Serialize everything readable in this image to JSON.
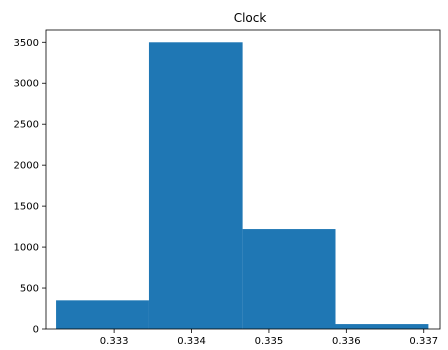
{
  "chart_data": {
    "type": "bar",
    "title": "Clock",
    "xlabel": "",
    "ylabel": "",
    "bins": [
      {
        "x0": 0.33225,
        "x1": 0.33345,
        "count": 350
      },
      {
        "x0": 0.33345,
        "x1": 0.33466,
        "count": 3500
      },
      {
        "x0": 0.33466,
        "x1": 0.33586,
        "count": 1220
      },
      {
        "x0": 0.33586,
        "x1": 0.33706,
        "count": 60
      }
    ],
    "xlim": [
      0.33212,
      0.33721
    ],
    "ylim": [
      0,
      3650
    ],
    "xticks": [
      0.333,
      0.334,
      0.335,
      0.336,
      0.337
    ],
    "xtick_labels": [
      "0.333",
      "0.334",
      "0.335",
      "0.336",
      "0.337"
    ],
    "yticks": [
      0,
      500,
      1000,
      1500,
      2000,
      2500,
      3000,
      3500
    ],
    "ytick_labels": [
      "0",
      "500",
      "1000",
      "1500",
      "2000",
      "2500",
      "3000",
      "3500"
    ],
    "grid": false,
    "colors": {
      "bar": "#1f77b4",
      "axis": "#000000"
    }
  }
}
